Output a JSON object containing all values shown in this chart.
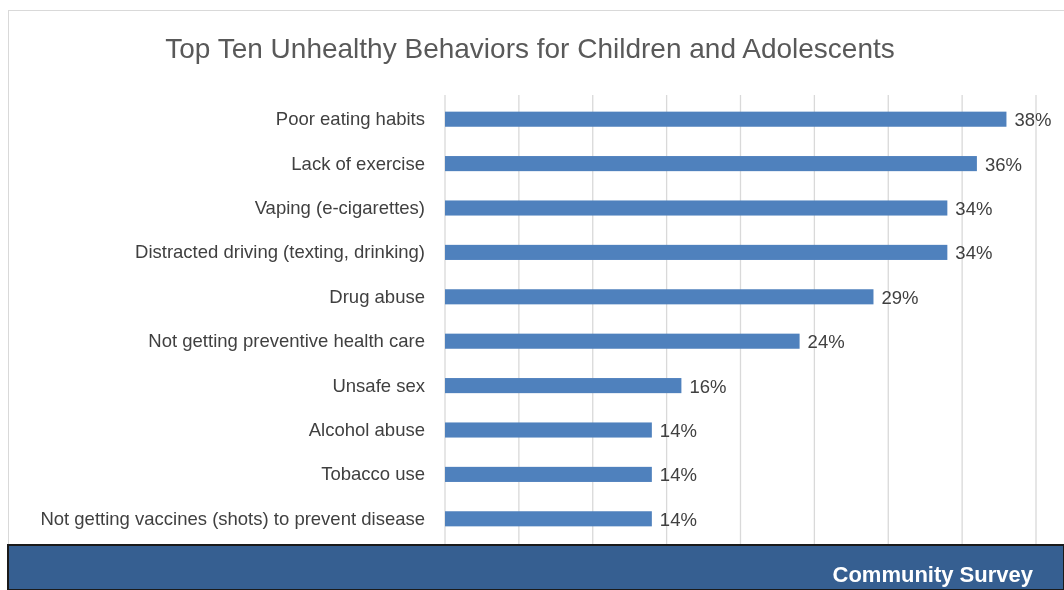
{
  "chart_data": {
    "type": "bar",
    "orientation": "horizontal",
    "title": "Top Ten Unhealthy Behaviors for Children and Adolescents",
    "categories": [
      "Poor eating habits",
      "Lack of exercise",
      "Vaping (e-cigarettes)",
      "Distracted driving (texting, drinking)",
      "Drug abuse",
      "Not getting preventive health care",
      "Unsafe sex",
      "Alcohol abuse",
      "Tobacco use",
      "Not getting vaccines (shots) to prevent disease"
    ],
    "values": [
      38,
      36,
      34,
      34,
      29,
      24,
      16,
      14,
      14,
      14
    ],
    "value_labels": [
      "38%",
      "36%",
      "34%",
      "34%",
      "29%",
      "24%",
      "16%",
      "14%",
      "14%",
      "14%"
    ],
    "color": "#4f81bd",
    "xlim": [
      0,
      40
    ],
    "xticks": [
      {
        "value": 0,
        "label": null
      },
      {
        "value": 5,
        "label": null
      },
      {
        "value": 10,
        "label": null
      },
      {
        "value": 15,
        "label": null
      },
      {
        "value": 20,
        "label": null
      },
      {
        "value": 25,
        "label": null
      },
      {
        "value": 30,
        "label": null
      },
      {
        "value": 35,
        "label": null
      },
      {
        "value": 40,
        "label": null
      }
    ],
    "grid": "x",
    "tick_labels": "y",
    "annotations": [
      "Community Survey"
    ]
  }
}
